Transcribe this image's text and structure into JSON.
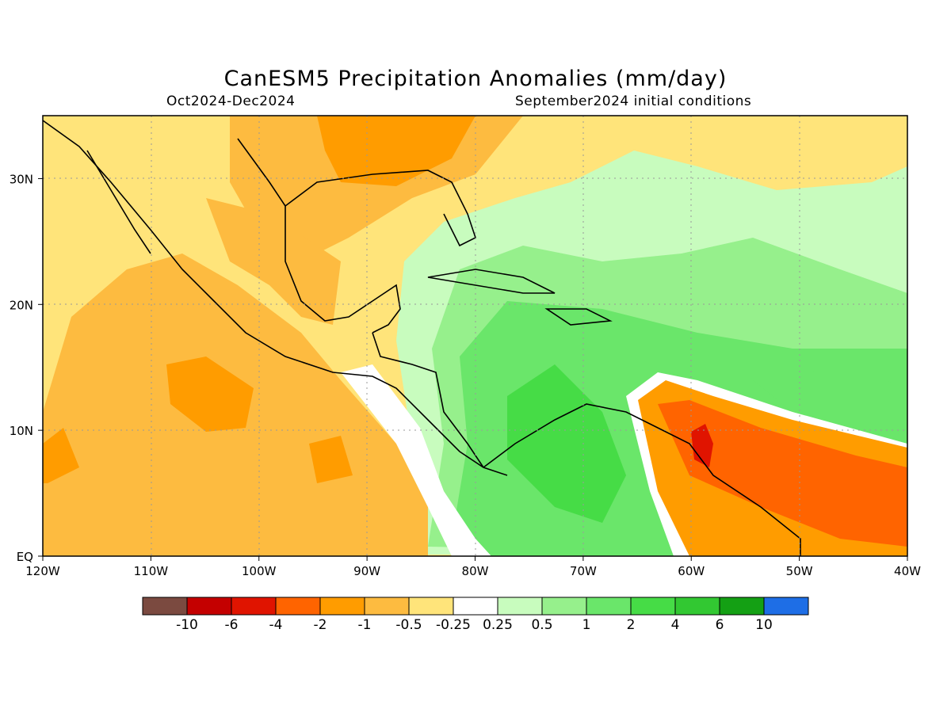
{
  "header": {
    "title": "CanESM5 Precipitation Anomalies (mm/day)",
    "period": "Oct2024-Dec2024",
    "initial_conditions": "September2024 initial conditions"
  },
  "map": {
    "lon_range": [
      -120,
      -40
    ],
    "lat_range": [
      0,
      35
    ],
    "lon_ticks": [
      {
        "value": -120,
        "label": "120W"
      },
      {
        "value": -110,
        "label": "110W"
      },
      {
        "value": -100,
        "label": "100W"
      },
      {
        "value": -90,
        "label": "90W"
      },
      {
        "value": -80,
        "label": "80W"
      },
      {
        "value": -70,
        "label": "70W"
      },
      {
        "value": -60,
        "label": "60W"
      },
      {
        "value": -50,
        "label": "50W"
      },
      {
        "value": -40,
        "label": "40W"
      }
    ],
    "lat_ticks": [
      {
        "value": 0,
        "label": "EQ"
      },
      {
        "value": 10,
        "label": "10N"
      },
      {
        "value": 20,
        "label": "20N"
      },
      {
        "value": 30,
        "label": "30N"
      }
    ],
    "grid": "dotted"
  },
  "colorbar": {
    "colors": [
      "#7b4a40",
      "#c40000",
      "#e01400",
      "#ff6400",
      "#ff9c00",
      "#fdbb40",
      "#ffe47a",
      "#ffffff",
      "#c8fcbe",
      "#96f08c",
      "#6ae66a",
      "#46dc46",
      "#32c832",
      "#14a014",
      "#1e6ee6"
    ],
    "labels": [
      "-10",
      "-6",
      "-4",
      "-2",
      "-1",
      "-0.5",
      "-0.25",
      "0.25",
      "0.5",
      "1",
      "2",
      "4",
      "6",
      "10"
    ]
  },
  "colors": {
    "dry1": "#ffe47a",
    "dry2": "#fdbb40",
    "dry3": "#ff9c00",
    "dry4": "#ff6400",
    "dry5": "#e01400",
    "wet1": "#c8fcbe",
    "wet2": "#96f08c",
    "wet3": "#6ae66a",
    "wet4": "#46dc46"
  }
}
